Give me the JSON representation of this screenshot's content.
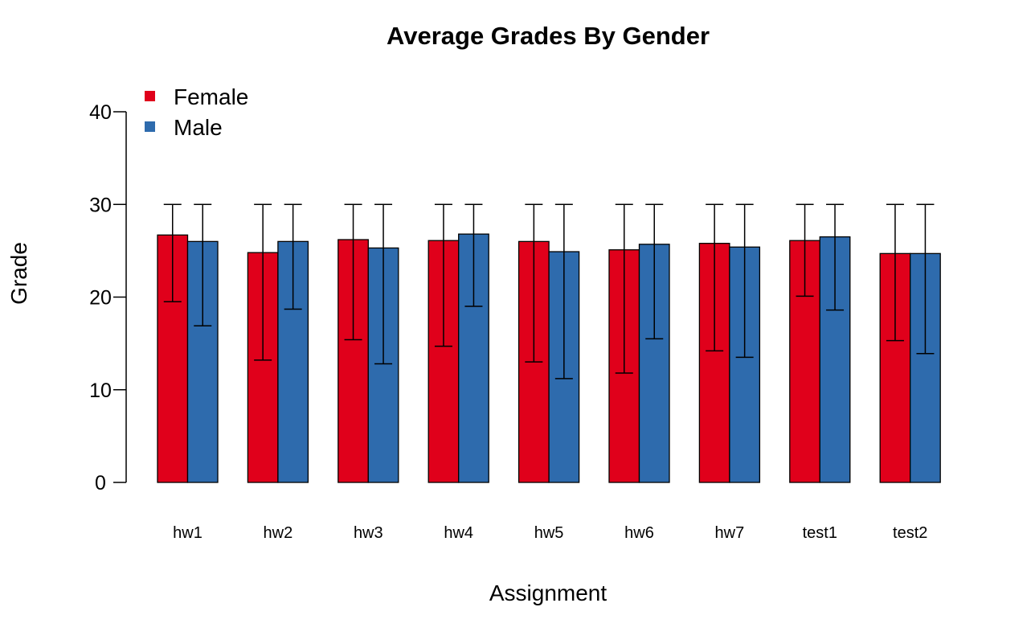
{
  "chart_data": {
    "type": "bar",
    "title": "Average Grades By Gender",
    "xlabel": "Assignment",
    "ylabel": "Grade",
    "categories": [
      "hw1",
      "hw2",
      "hw3",
      "hw4",
      "hw5",
      "hw6",
      "hw7",
      "test1",
      "test2"
    ],
    "ylim": [
      0,
      40
    ],
    "yticks": [
      0,
      10,
      20,
      30,
      40
    ],
    "ytick_labels": [
      "0",
      "10",
      "20",
      "30",
      "40"
    ],
    "grid": false,
    "legend_position": "top-left",
    "series": [
      {
        "name": "Female",
        "color": "#E0001B",
        "values": [
          26.7,
          24.8,
          26.2,
          26.1,
          26.0,
          25.1,
          25.8,
          26.1,
          24.7
        ],
        "error_low": [
          19.5,
          13.2,
          15.4,
          14.7,
          13.0,
          11.8,
          14.2,
          20.1,
          15.3
        ],
        "error_high": [
          30,
          30,
          30,
          30,
          30,
          30,
          30,
          30,
          30
        ]
      },
      {
        "name": "Male",
        "color": "#2E6BAD",
        "values": [
          26.0,
          26.0,
          25.3,
          26.8,
          24.9,
          25.7,
          25.4,
          26.5,
          24.7
        ],
        "error_low": [
          16.9,
          18.7,
          12.8,
          19.0,
          11.2,
          15.5,
          13.5,
          18.6,
          13.9
        ],
        "error_high": [
          30,
          30,
          30,
          30,
          30,
          30,
          30,
          30,
          30
        ]
      }
    ]
  }
}
